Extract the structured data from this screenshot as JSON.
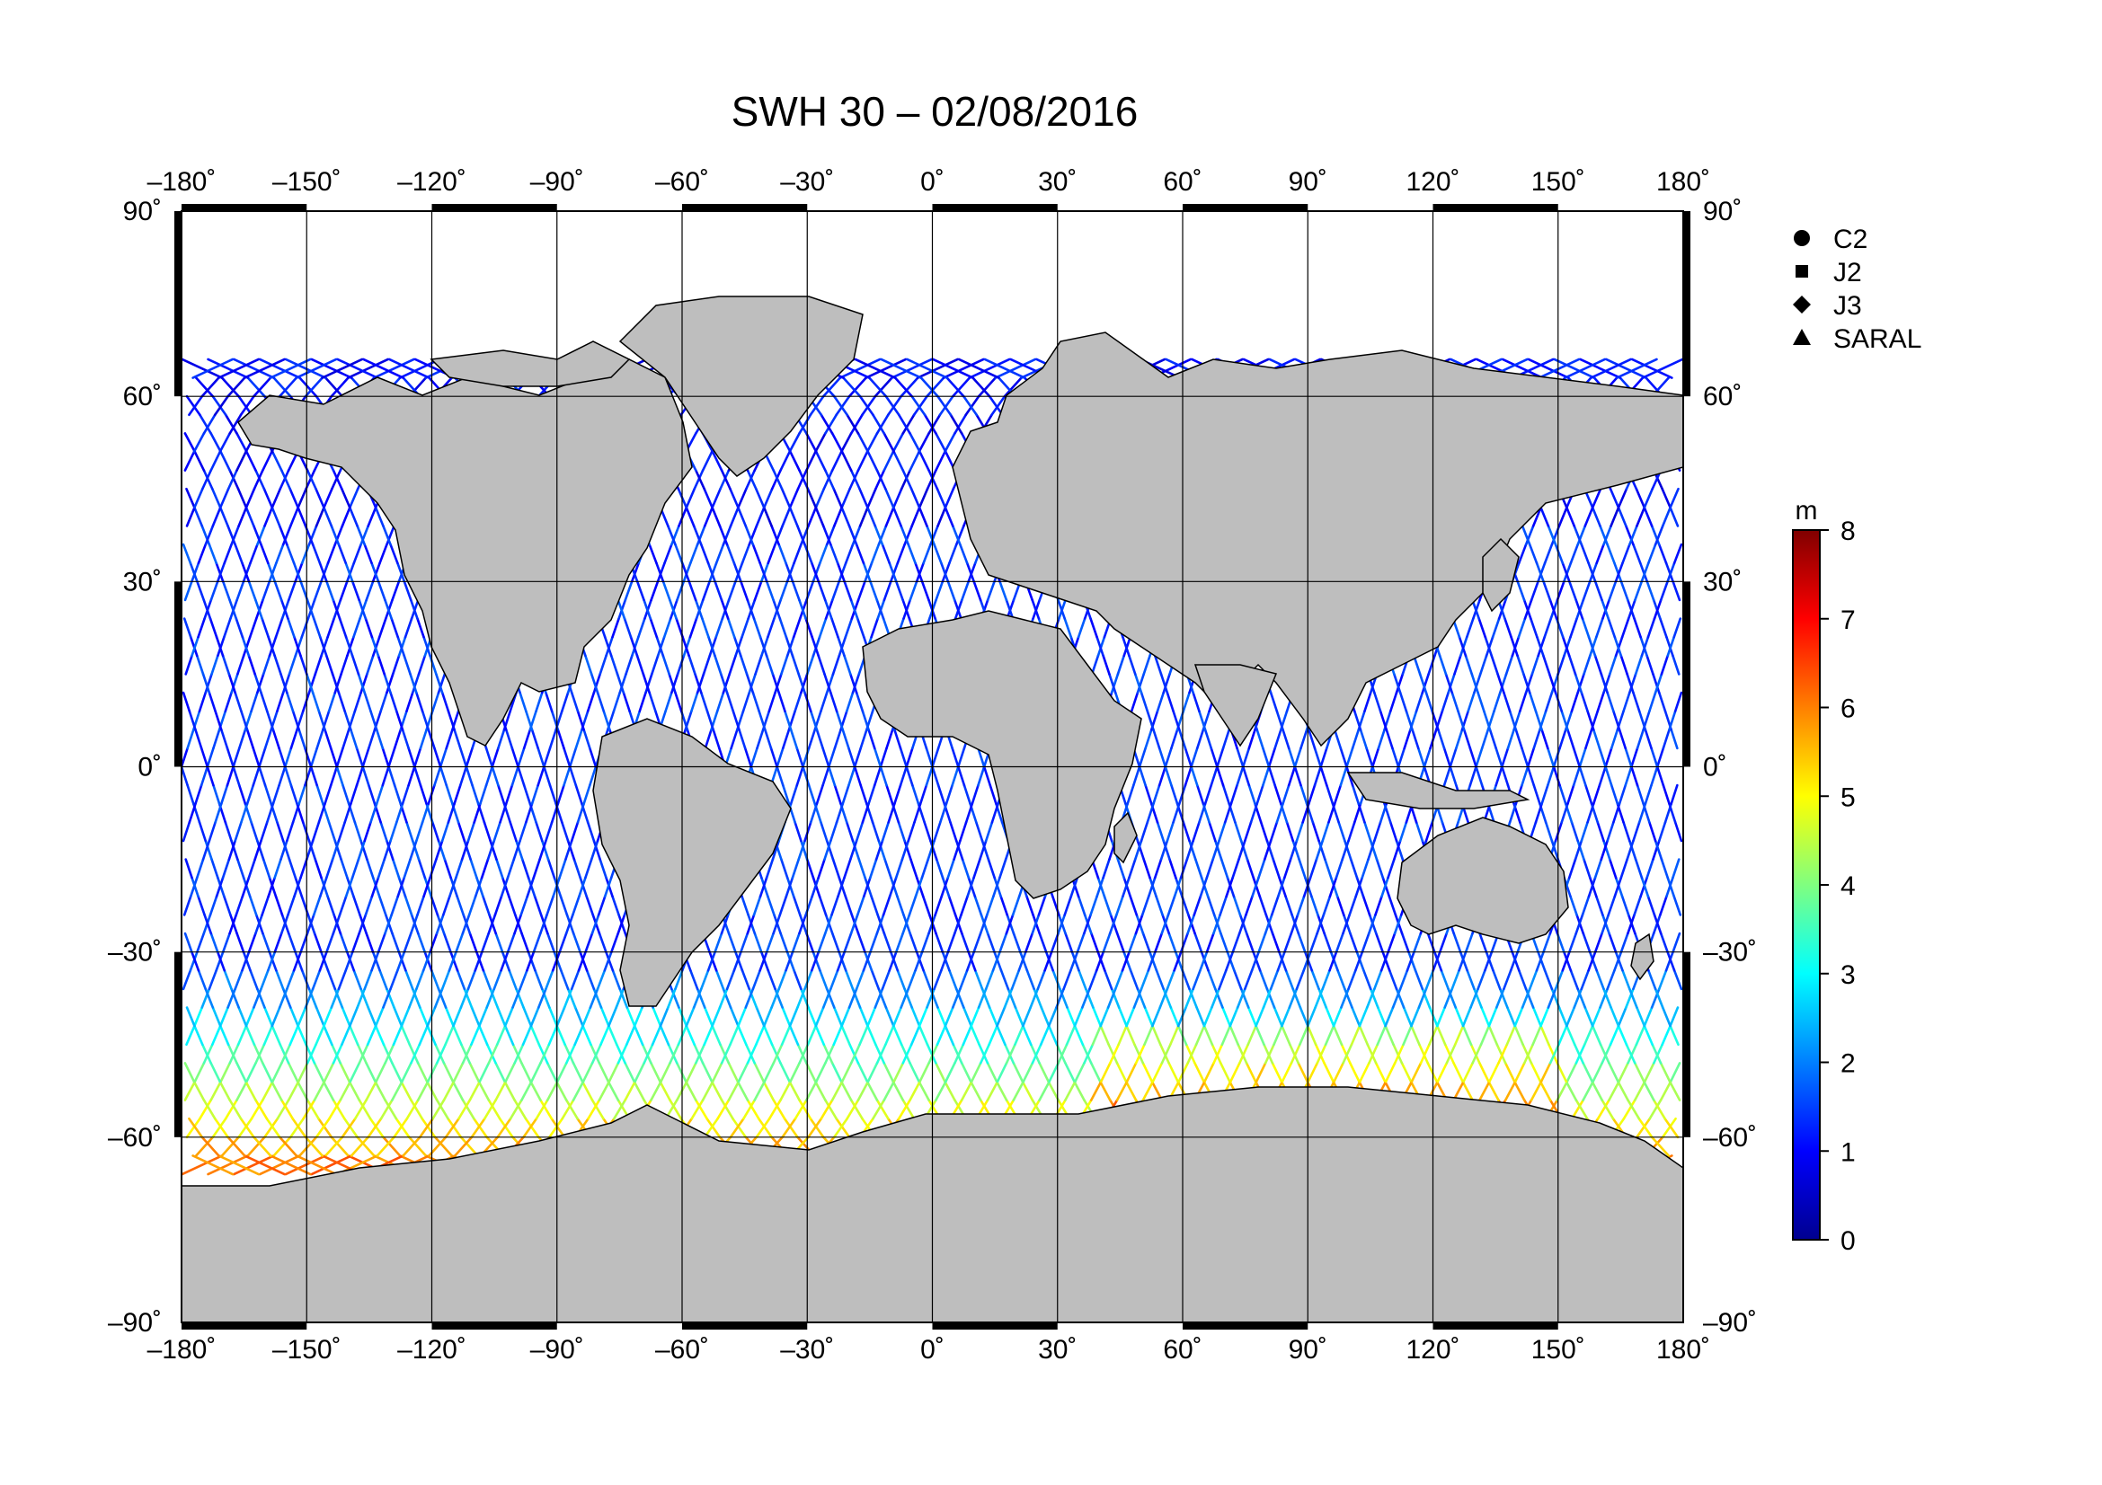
{
  "title": "SWH 30 – 02/08/2016",
  "lon_ticks": [
    "–180˚",
    "–150˚",
    "–120˚",
    "–90˚",
    "–60˚",
    "–30˚",
    "0˚",
    "30˚",
    "60˚",
    "90˚",
    "120˚",
    "150˚",
    "180˚"
  ],
  "lat_ticks": [
    "90˚",
    "60˚",
    "30˚",
    "0˚",
    "–30˚",
    "–60˚",
    "–90˚"
  ],
  "legend": [
    {
      "label": "C2",
      "symbol": "circle"
    },
    {
      "label": "J2",
      "symbol": "square"
    },
    {
      "label": "J3",
      "symbol": "diamond"
    },
    {
      "label": "SARAL",
      "symbol": "triangle"
    }
  ],
  "colorbar": {
    "unit": "m",
    "min": 0,
    "max": 8,
    "ticks": [
      "0",
      "1",
      "2",
      "3",
      "4",
      "5",
      "6",
      "7",
      "8"
    ],
    "colormap": "jet"
  },
  "map": {
    "projection": "equirectangular",
    "lon_range": [
      -180,
      180
    ],
    "lat_range": [
      -90,
      90
    ],
    "gridlines": true,
    "land_color": "#bebebe",
    "ocean_color": "#ffffff",
    "track_coverage_lat": [
      -66,
      66
    ]
  },
  "chart_data": {
    "type": "scatter",
    "title": "SWH 30 – 02/08/2016",
    "xlim": [
      -180,
      180
    ],
    "ylim": [
      -90,
      90
    ],
    "series": [
      {
        "name": "C2"
      },
      {
        "name": "J2"
      },
      {
        "name": "J3"
      },
      {
        "name": "SARAL"
      }
    ],
    "colorbar_range": [
      0,
      8
    ],
    "colorbar_unit": "m"
  }
}
